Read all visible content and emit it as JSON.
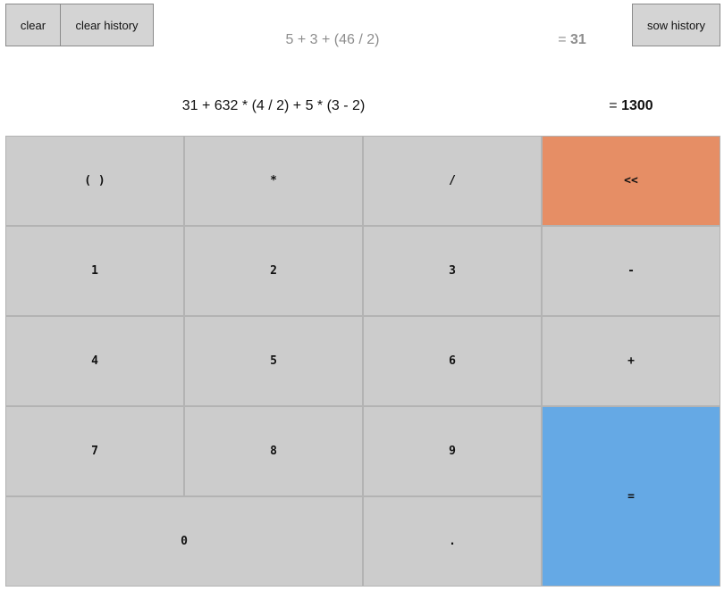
{
  "toolbar": {
    "clear_label": "clear",
    "clear_history_label": "clear history",
    "show_history_label": "sow history"
  },
  "history": {
    "expression": "5 + 3 + (46 / 2)",
    "equals_sign": "= ",
    "result": "31"
  },
  "current": {
    "expression": "31 + 632 * (4 / 2) + 5 * (3 - 2)",
    "equals_sign": "= ",
    "result": "1300"
  },
  "keypad": {
    "parens": "( )",
    "multiply": "*",
    "divide": "/",
    "backspace": "<<",
    "one": "1",
    "two": "2",
    "three": "3",
    "minus": "-",
    "four": "4",
    "five": "5",
    "six": "6",
    "plus": "+",
    "seven": "7",
    "eight": "8",
    "nine": "9",
    "equals": "=",
    "zero": "0",
    "dot": "."
  },
  "colors": {
    "backspace": "#e68e65",
    "equals": "#65a9e5",
    "key": "#cccccc"
  }
}
